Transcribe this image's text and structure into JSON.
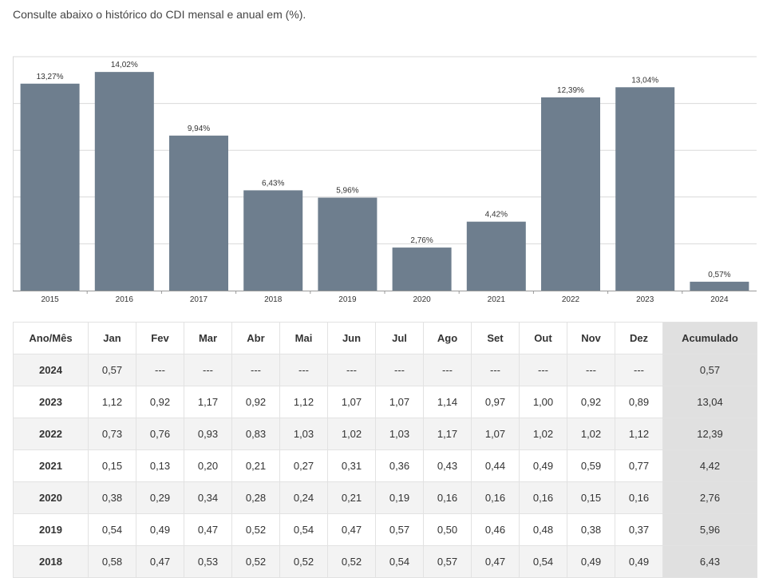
{
  "intro_text": "Consulte abaixo o histórico do CDI mensal e anual em (%).",
  "colors": {
    "bar": "#6e7e8e",
    "grid": "#d9d9d9",
    "accumulated_col": "#e0e0e0"
  },
  "chart_data": {
    "type": "bar",
    "categories": [
      "2015",
      "2016",
      "2017",
      "2018",
      "2019",
      "2020",
      "2021",
      "2022",
      "2023",
      "2024"
    ],
    "values": [
      13.27,
      14.02,
      9.94,
      6.43,
      5.96,
      2.76,
      4.42,
      12.39,
      13.04,
      0.57
    ],
    "data_labels": [
      "13,27%",
      "14,02%",
      "9,94%",
      "6,43%",
      "5,96%",
      "2,76%",
      "4,42%",
      "12,39%",
      "13,04%",
      "0,57%"
    ],
    "ylim": [
      0,
      15
    ],
    "y_gridlines": [
      0,
      3,
      6,
      9,
      12,
      15
    ],
    "grid": true,
    "title": "",
    "xlabel": "",
    "ylabel": ""
  },
  "table": {
    "headers": [
      "Ano/Mês",
      "Jan",
      "Fev",
      "Mar",
      "Abr",
      "Mai",
      "Jun",
      "Jul",
      "Ago",
      "Set",
      "Out",
      "Nov",
      "Dez",
      "Acumulado"
    ],
    "rows": [
      [
        "2024",
        "0,57",
        "---",
        "---",
        "---",
        "---",
        "---",
        "---",
        "---",
        "---",
        "---",
        "---",
        "---",
        "0,57"
      ],
      [
        "2023",
        "1,12",
        "0,92",
        "1,17",
        "0,92",
        "1,12",
        "1,07",
        "1,07",
        "1,14",
        "0,97",
        "1,00",
        "0,92",
        "0,89",
        "13,04"
      ],
      [
        "2022",
        "0,73",
        "0,76",
        "0,93",
        "0,83",
        "1,03",
        "1,02",
        "1,03",
        "1,17",
        "1,07",
        "1,02",
        "1,02",
        "1,12",
        "12,39"
      ],
      [
        "2021",
        "0,15",
        "0,13",
        "0,20",
        "0,21",
        "0,27",
        "0,31",
        "0,36",
        "0,43",
        "0,44",
        "0,49",
        "0,59",
        "0,77",
        "4,42"
      ],
      [
        "2020",
        "0,38",
        "0,29",
        "0,34",
        "0,28",
        "0,24",
        "0,21",
        "0,19",
        "0,16",
        "0,16",
        "0,16",
        "0,15",
        "0,16",
        "2,76"
      ],
      [
        "2019",
        "0,54",
        "0,49",
        "0,47",
        "0,52",
        "0,54",
        "0,47",
        "0,57",
        "0,50",
        "0,46",
        "0,48",
        "0,38",
        "0,37",
        "5,96"
      ],
      [
        "2018",
        "0,58",
        "0,47",
        "0,53",
        "0,52",
        "0,52",
        "0,52",
        "0,54",
        "0,57",
        "0,47",
        "0,54",
        "0,49",
        "0,49",
        "6,43"
      ]
    ]
  }
}
